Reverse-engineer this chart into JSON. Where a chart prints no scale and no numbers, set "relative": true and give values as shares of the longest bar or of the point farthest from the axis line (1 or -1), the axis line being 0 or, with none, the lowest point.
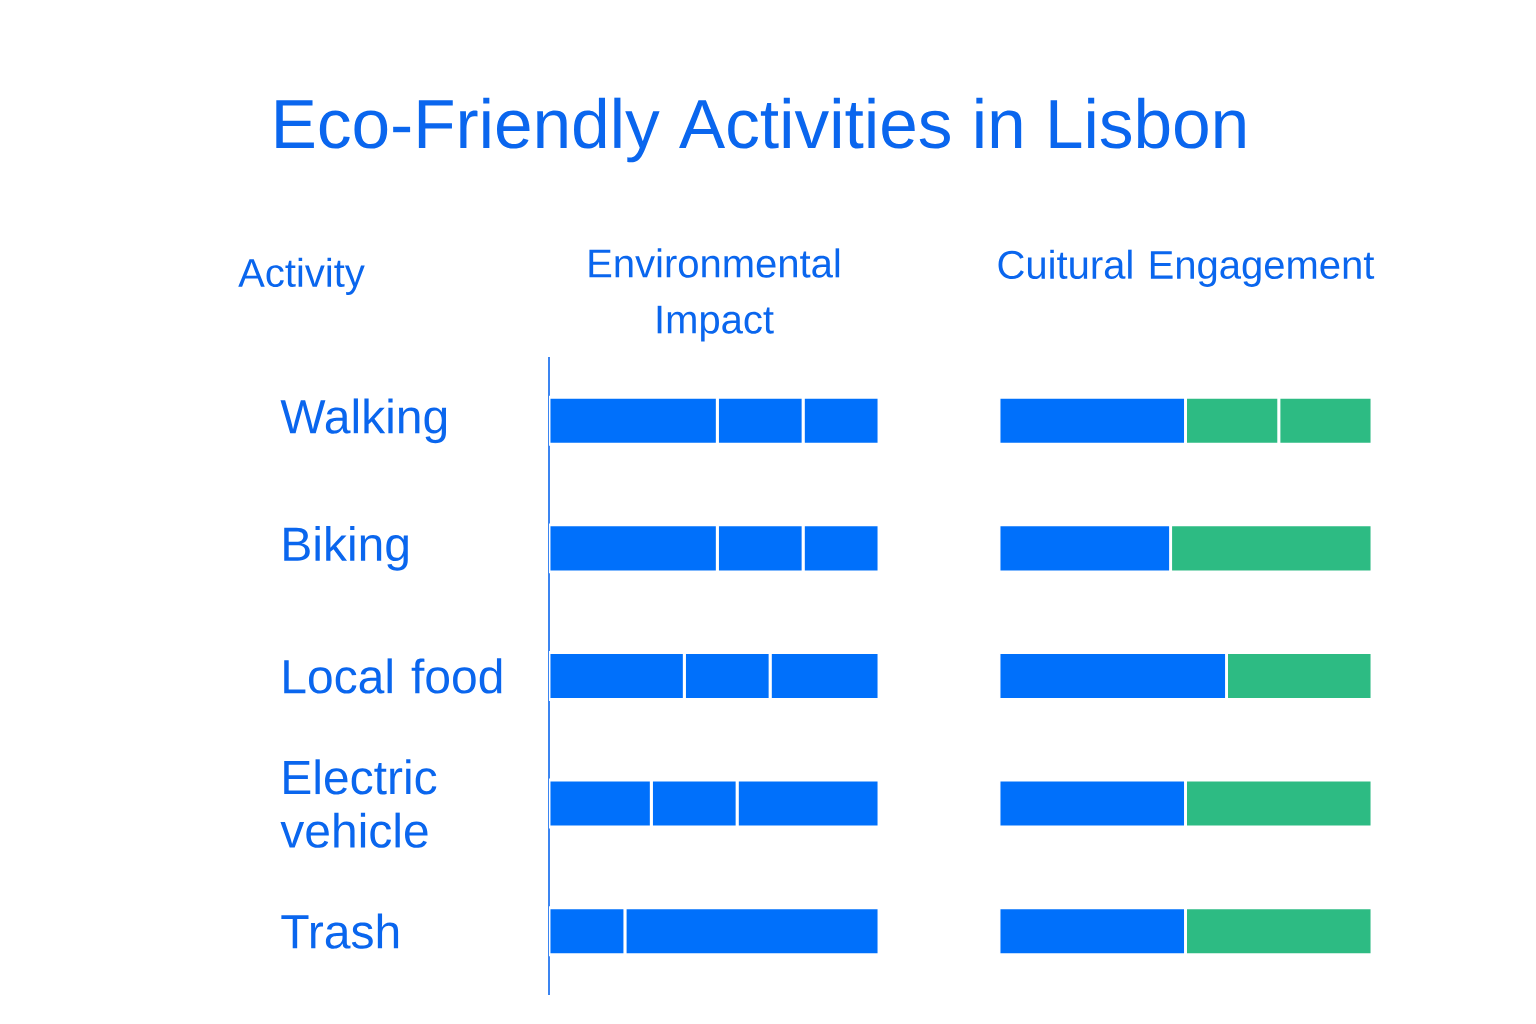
{
  "chart_data": [
    {
      "type": "other",
      "title": "Eco-Friendly Activities in Lisbon"
    },
    {
      "type": "bar",
      "title": "Environmental Impact",
      "ylabel": "Activity",
      "orientation": "horizontal",
      "stacked": true,
      "relative": true,
      "tick_labels": "y",
      "categories": [
        "Walking",
        "Biking",
        "Local food",
        "Electric vehicle",
        "Trash"
      ],
      "series": [
        {
          "color": "#0070fb",
          "values": [
            0.51,
            0.51,
            0.41,
            0.31,
            0.23
          ]
        },
        {
          "color": "#0070fb",
          "values": [
            0.26,
            0.26,
            0.26,
            0.26,
            0.77
          ]
        },
        {
          "color": "#0070fb",
          "values": [
            0.23,
            0.23,
            0.33,
            0.43,
            null
          ]
        }
      ]
    },
    {
      "type": "bar",
      "title": "Cuitural Engagement",
      "orientation": "horizontal",
      "stacked": true,
      "relative": true,
      "tick_labels": false,
      "categories": [
        null,
        null,
        null,
        null,
        null
      ],
      "series": [
        {
          "color": "#0070fb",
          "values": [
            0.5,
            0.46,
            0.61,
            0.5,
            0.5
          ]
        },
        {
          "color": "#2dbb83",
          "values": [
            0.25,
            0.54,
            0.39,
            0.5,
            0.5
          ]
        },
        {
          "color": "#2dbb83",
          "values": [
            0.25,
            null,
            null,
            null,
            null
          ]
        }
      ]
    }
  ]
}
